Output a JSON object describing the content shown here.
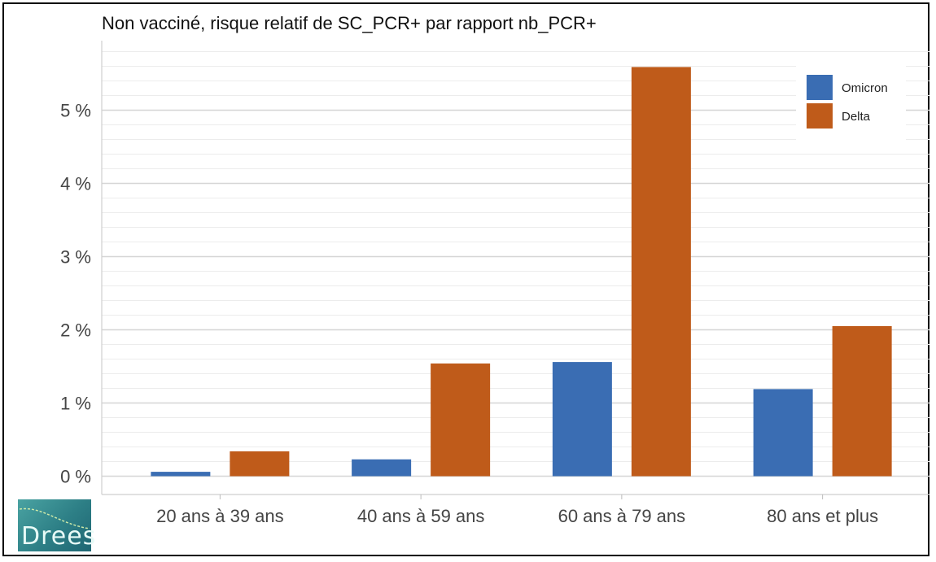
{
  "chart_data": {
    "type": "bar",
    "title": "Non vacciné, risque relatif de SC_PCR+ par rapport nb_PCR+",
    "xlabel": "",
    "ylabel": "",
    "categories": [
      "20 ans à 39 ans",
      "40 ans à 59 ans",
      "60 ans à 79 ans",
      "80 ans et plus"
    ],
    "series": [
      {
        "name": "Omicron",
        "color": "#3a6db3",
        "values": [
          0.06,
          0.23,
          1.56,
          1.19
        ]
      },
      {
        "name": "Delta",
        "color": "#bf5b1a",
        "values": [
          0.34,
          1.54,
          5.59,
          2.05
        ]
      }
    ],
    "ylim": [
      -0.25,
      5.95
    ],
    "y_ticks": [
      0,
      1,
      2,
      3,
      4,
      5
    ],
    "y_tick_labels": [
      "0 %",
      "1 %",
      "2 %",
      "3 %",
      "4 %",
      "5 %"
    ],
    "grid": true,
    "legend_position": "top-right"
  },
  "logo": {
    "text": "Drees"
  }
}
